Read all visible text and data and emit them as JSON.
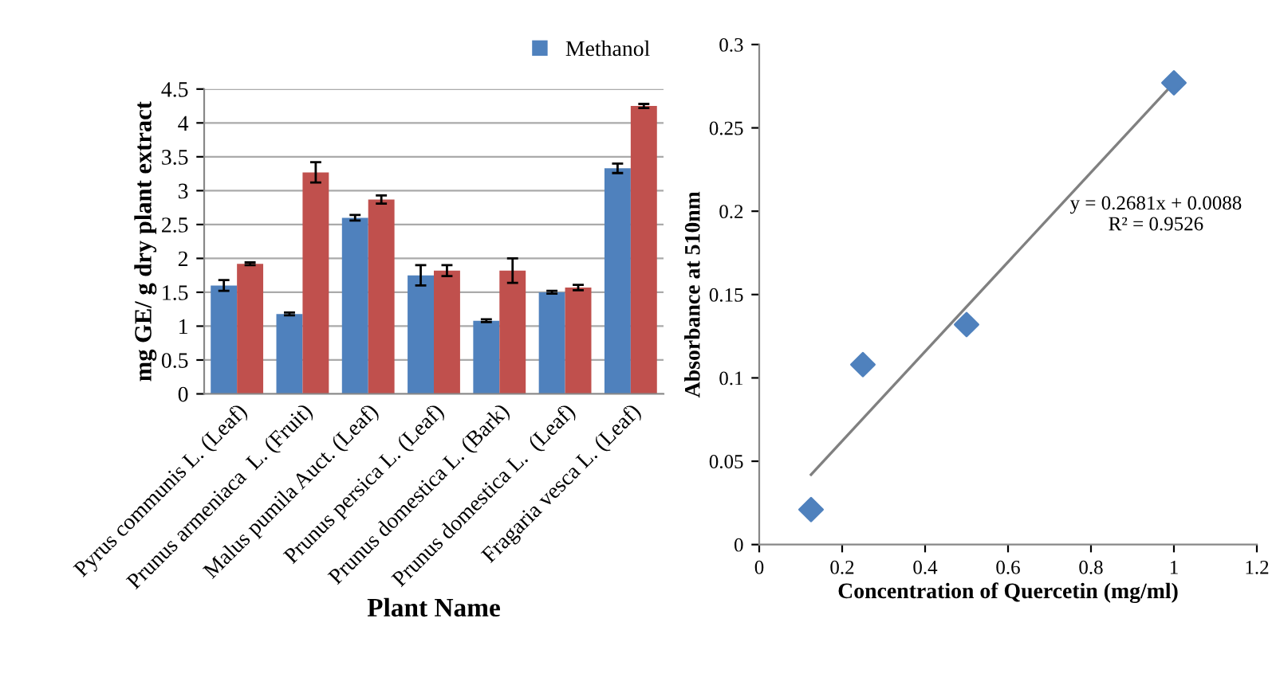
{
  "chart_data": [
    {
      "type": "bar",
      "xlabel": "Plant Name",
      "ylabel": "mg GE/ g dry plant extract",
      "categories": [
        "Pyrus communis L. (Leaf)",
        "Prunus armeniaca  L. (Fruit)",
        "Malus pumila Auct. (Leaf)",
        "Prunus persica L. (Leaf)",
        "Prunus domestica L. (Bark)",
        "Prunus domestica L.  (Leaf)",
        "Fragaria vesca L. (Leaf)"
      ],
      "series": [
        {
          "name": "Methanol",
          "color": "#4f81bd",
          "values": [
            1.6,
            1.18,
            2.6,
            1.75,
            1.08,
            1.5,
            3.33
          ],
          "errors": [
            0.08,
            0.02,
            0.04,
            0.15,
            0.02,
            0.02,
            0.07
          ]
        },
        {
          "color": "#c0504d",
          "values": [
            1.92,
            3.27,
            2.87,
            1.82,
            1.82,
            1.57,
            4.25
          ],
          "errors": [
            0.02,
            0.15,
            0.06,
            0.08,
            0.18,
            0.04,
            0.03
          ]
        }
      ],
      "ylim": [
        0,
        4.5
      ],
      "yticks": [
        0,
        0.5,
        1,
        1.5,
        2,
        2.5,
        3,
        3.5,
        4,
        4.5
      ],
      "grid": "y",
      "legend": "top right"
    },
    {
      "type": "scatter",
      "xlabel": "Concentration of Quercetin (mg/ml)",
      "ylabel": "Absorbance at 510nm",
      "marker": "diamond",
      "series": [
        {
          "color": "#4f81bd",
          "x": [
            0.125,
            0.25,
            0.5,
            1
          ],
          "values": [
            0.021,
            0.108,
            0.132,
            0.277
          ]
        },
        {
          "type": "line",
          "color": "#808080",
          "marker": "none",
          "x": [
            0.125,
            1
          ],
          "values": [
            0.042,
            0.277
          ]
        }
      ],
      "annotations": [
        "y = 0.2681x + 0.0088\nR² = 0.9526"
      ],
      "xlim": [
        0,
        1.2
      ],
      "xticks": [
        0,
        0.2,
        0.4,
        0.6,
        0.8,
        1,
        1.2
      ],
      "ylim": [
        0,
        0.3
      ],
      "yticks": [
        0,
        0.05,
        0.1,
        0.15,
        0.2,
        0.25,
        0.3
      ],
      "grid": false
    }
  ]
}
